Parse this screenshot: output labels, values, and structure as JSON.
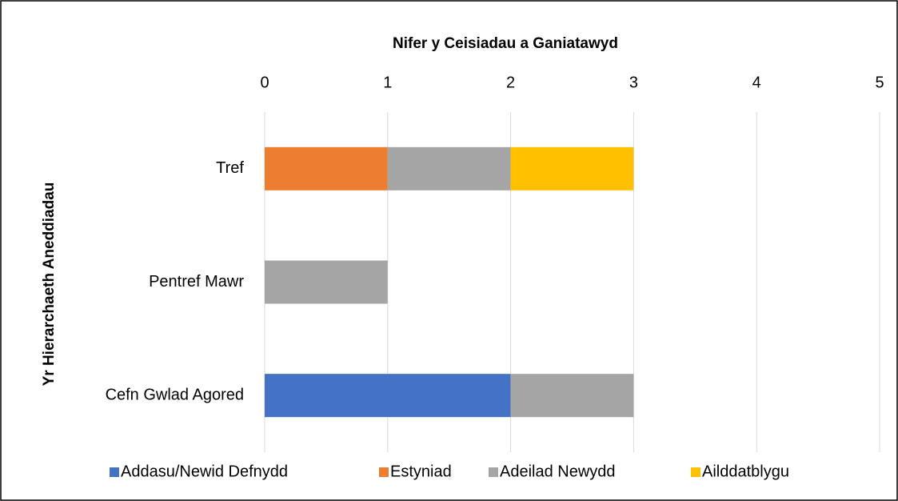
{
  "chart_data": {
    "type": "bar",
    "orientation": "horizontal",
    "stacked": true,
    "title": "Nifer y Ceisiadau a Ganiatawyd",
    "y_label": "Yr Hierarchaeth Aneddiadau",
    "categories": [
      "Tref",
      "Pentref Mawr",
      "Cefn Gwlad Agored"
    ],
    "series": [
      {
        "name": "Addasu/Newid Defnydd",
        "color": "#4472c4",
        "values": [
          0,
          0,
          2
        ]
      },
      {
        "name": "Estyniad",
        "color": "#ed7d31",
        "values": [
          1,
          0,
          0
        ]
      },
      {
        "name": "Adeilad Newydd",
        "color": "#a5a5a5",
        "values": [
          1,
          1,
          1
        ]
      },
      {
        "name": "Ailddatblygu",
        "color": "#ffc000",
        "values": [
          1,
          0,
          0
        ]
      }
    ],
    "xlim": [
      0,
      5
    ],
    "xticks": [
      0,
      1,
      2,
      3,
      4,
      5
    ],
    "grid": true,
    "legend": "bottom"
  }
}
